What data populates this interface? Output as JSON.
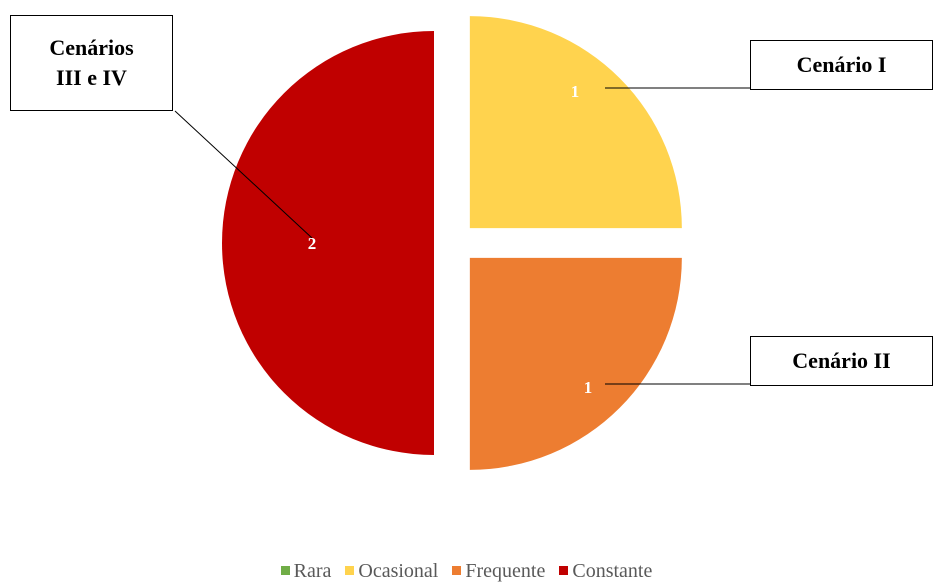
{
  "chart_data": {
    "type": "pie",
    "categories": [
      "Rara",
      "Ocasional",
      "Frequente",
      "Constante"
    ],
    "values": [
      0,
      1,
      1,
      2
    ],
    "data_labels": [
      "",
      "1",
      "1",
      "2"
    ],
    "colors": [
      "#70AD47",
      "#FFD34E",
      "#ED7D31",
      "#C00000"
    ],
    "exploded": true,
    "callouts": [
      "",
      "Cenário I",
      "Cenário II",
      "Cenários III e IV"
    ],
    "legend_position": "bottom",
    "title": ""
  },
  "callouts": {
    "ocasional": "Cenário I",
    "frequente": "Cenário II",
    "constante": "Cenários III e IV"
  },
  "legend": {
    "items": [
      {
        "label": "Rara",
        "color": "#70AD47"
      },
      {
        "label": "Ocasional",
        "color": "#FFD34E"
      },
      {
        "label": "Frequente",
        "color": "#ED7D31"
      },
      {
        "label": "Constante",
        "color": "#C00000"
      }
    ]
  }
}
